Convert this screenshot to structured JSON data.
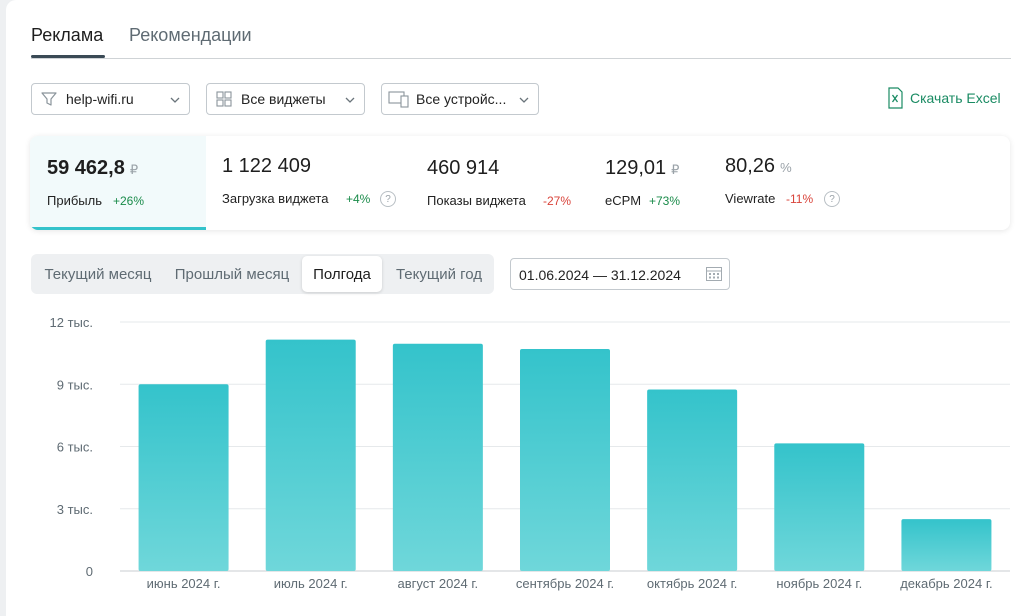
{
  "tabs": [
    {
      "label": "Реклама",
      "active": true
    },
    {
      "label": "Рекомендации",
      "active": false
    }
  ],
  "filters": {
    "site": "help-wifi.ru",
    "widgets": "Все виджеты",
    "devices": "Все устройс..."
  },
  "excel_label": "Скачать Excel",
  "stats": [
    {
      "value": "59 462,8",
      "currency": "₽",
      "label": "Прибыль",
      "change": "+26%",
      "change_dir": "pos",
      "help": false
    },
    {
      "value": "1 122 409",
      "currency": "",
      "label": "Загрузка виджета",
      "change": "+4%",
      "change_dir": "pos",
      "help": true
    },
    {
      "value": "460 914",
      "currency": "",
      "label": "Показы виджета",
      "change": "-27%",
      "change_dir": "neg",
      "help": false
    },
    {
      "value": "129,01",
      "currency": "₽",
      "label": "eCPM",
      "change": "+73%",
      "change_dir": "pos",
      "help": false
    },
    {
      "value": "80,26",
      "currency": "%",
      "label": "Viewrate",
      "change": "-11%",
      "change_dir": "neg",
      "help": true
    }
  ],
  "help_mark": "?",
  "periods": [
    "Текущий месяц",
    "Прошлый месяц",
    "Полгода",
    "Текущий год"
  ],
  "active_period": "Полгода",
  "date_range": "01.06.2024 — 31.12.2024",
  "colors": {
    "accent": "#34c3cb",
    "positive": "#1a8b4a",
    "negative": "#d9433a",
    "excel": "#1a8b63"
  },
  "chart_data": {
    "type": "bar",
    "categories": [
      "июнь 2024 г.",
      "июль 2024 г.",
      "август 2024 г.",
      "сентябрь 2024 г.",
      "октябрь 2024 г.",
      "ноябрь 2024 г.",
      "декабрь 2024 г."
    ],
    "values": [
      9000,
      11150,
      10950,
      10700,
      8750,
      6150,
      2500
    ],
    "yticks": [
      {
        "value": 0,
        "label": "0"
      },
      {
        "value": 3000,
        "label": "3 тыс."
      },
      {
        "value": 6000,
        "label": "6 тыс."
      },
      {
        "value": 9000,
        "label": "9 тыс."
      },
      {
        "value": 12000,
        "label": "12 тыс."
      }
    ],
    "ylim": [
      0,
      12000
    ],
    "grid": true,
    "title": "",
    "xlabel": "",
    "ylabel": ""
  }
}
